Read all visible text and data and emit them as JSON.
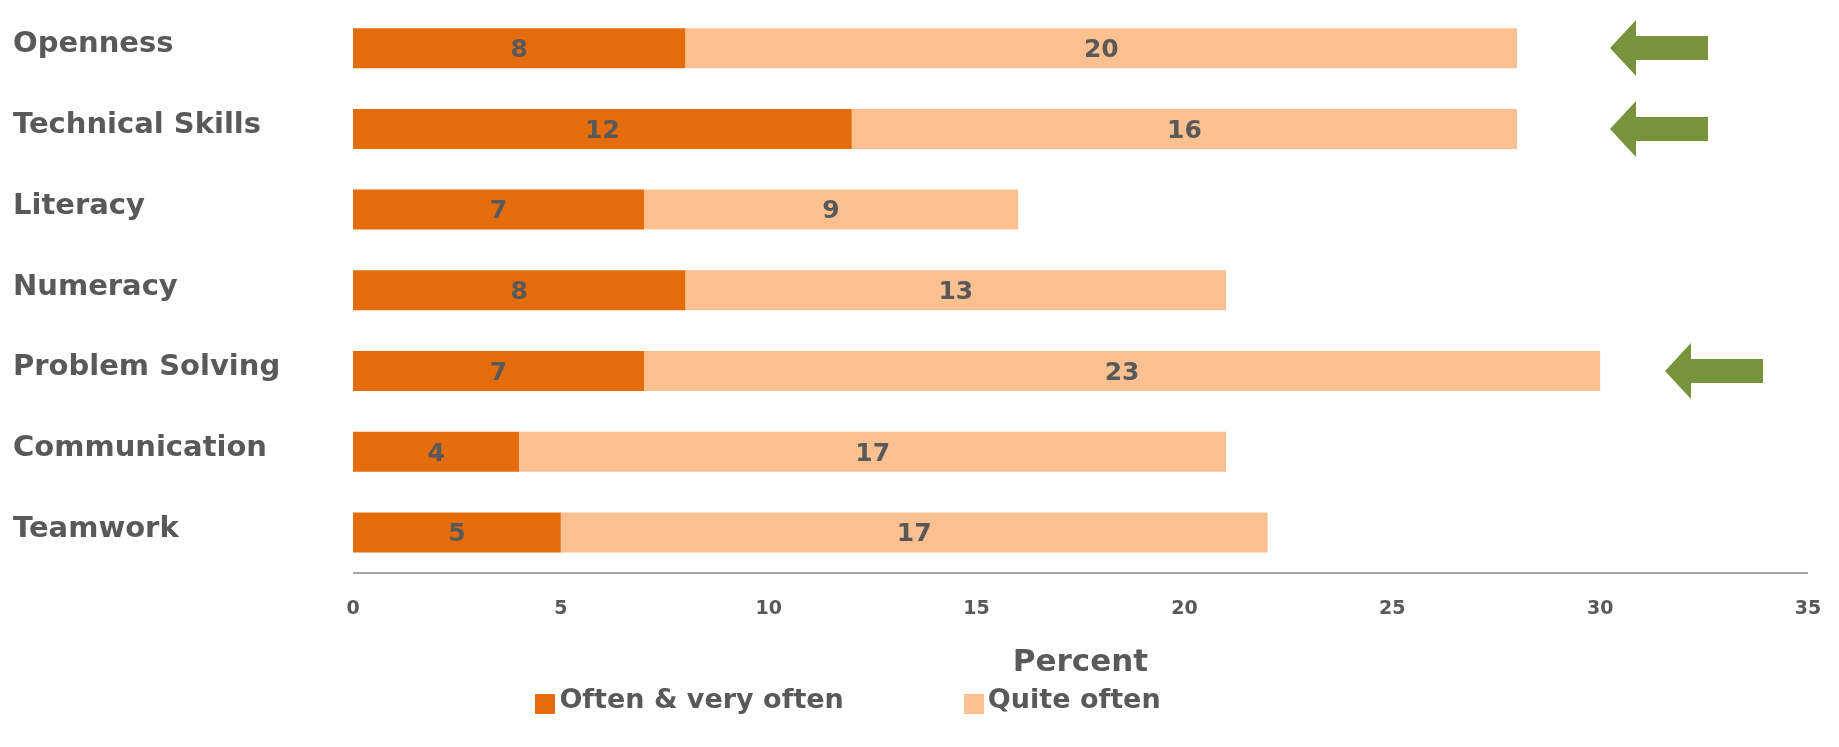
{
  "chart_data": {
    "type": "bar",
    "orientation": "horizontal",
    "stacked": true,
    "xlabel": "Percent",
    "categories": [
      "Openness",
      "Technical Skills",
      "Literacy",
      "Numeracy",
      "Problem Solving",
      "Communication",
      "Teamwork"
    ],
    "series": [
      {
        "name": "Often & very often",
        "color": "#e46c0a",
        "values": [
          8,
          12,
          7,
          8,
          7,
          4,
          5
        ]
      },
      {
        "name": "Quite often",
        "color": "#fac090",
        "values": [
          20,
          16,
          9,
          13,
          23,
          17,
          17
        ]
      }
    ],
    "xlim": [
      0,
      35
    ],
    "xticks": [
      0,
      5,
      10,
      15,
      20,
      25,
      30,
      35
    ],
    "legend": "bottom",
    "data_labels": true
  }
}
